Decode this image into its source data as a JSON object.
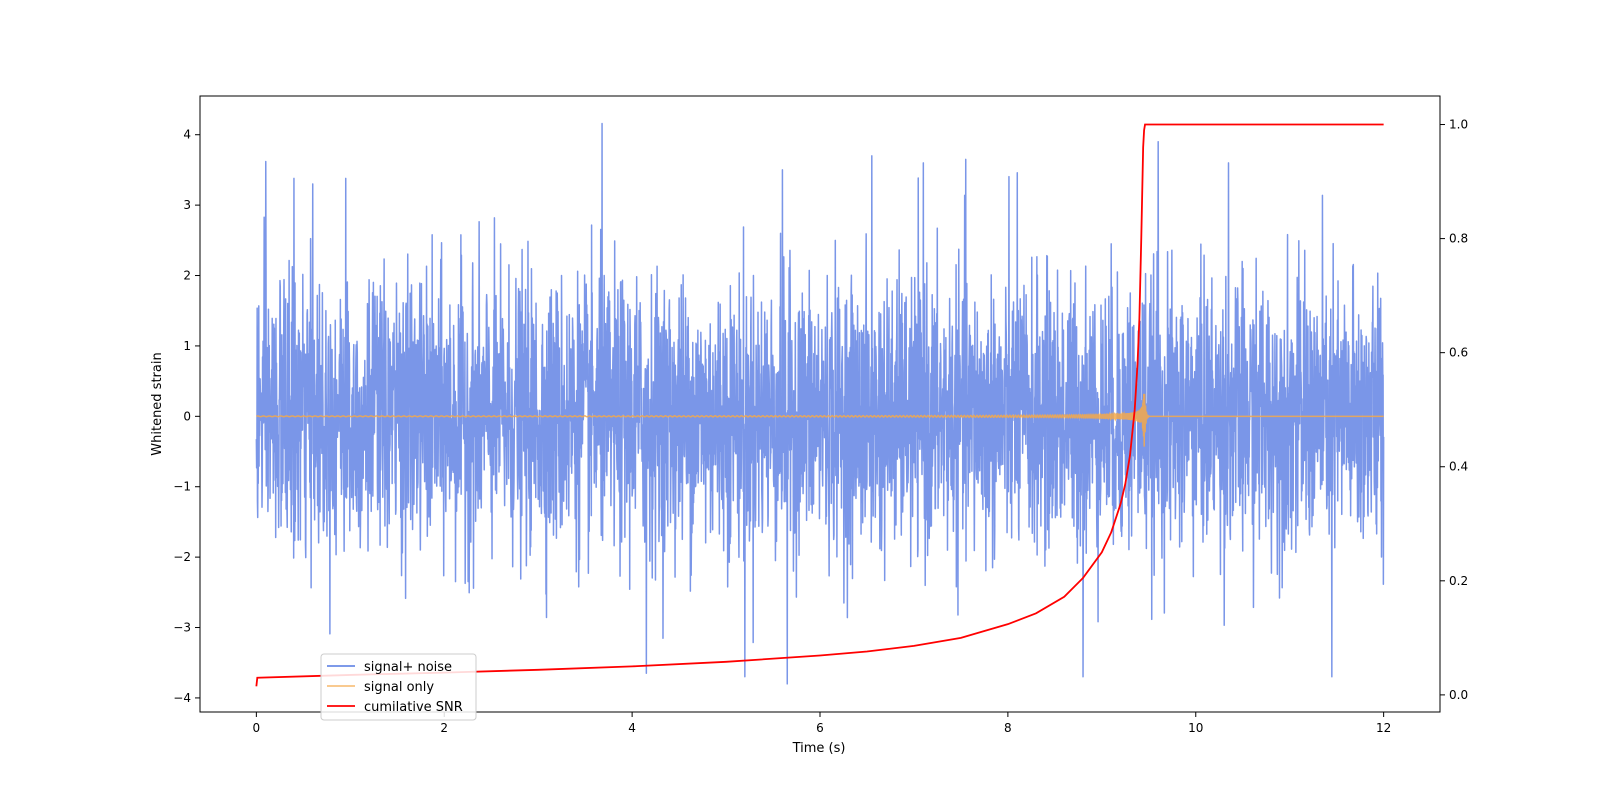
{
  "chart_data": {
    "type": "line",
    "title": "",
    "xlabel": "Time (s)",
    "ylabel": "Whitened strain",
    "y2label": "",
    "xlim": [
      -0.6,
      12.6
    ],
    "ylim": [
      -4.2,
      4.55
    ],
    "y2lim": [
      -0.03,
      1.05
    ],
    "xticks": [
      0,
      2,
      4,
      6,
      8,
      10,
      12
    ],
    "xtick_labels": [
      "0",
      "2",
      "4",
      "6",
      "8",
      "10",
      "12"
    ],
    "yticks": [
      -4,
      -3,
      -2,
      -1,
      0,
      1,
      2,
      3,
      4
    ],
    "ytick_labels": [
      "−4",
      "−3",
      "−2",
      "−1",
      "0",
      "1",
      "2",
      "3",
      "4"
    ],
    "y2ticks": [
      0.0,
      0.2,
      0.4,
      0.6,
      0.8,
      1.0
    ],
    "y2tick_labels": [
      "0.0",
      "0.2",
      "0.4",
      "0.6",
      "0.8",
      "1.0"
    ],
    "grid": false,
    "legend_position": "lower-left",
    "series": [
      {
        "name": "signal+ noise",
        "axis": "left",
        "color": "#6b8be6",
        "style": "dense noise, approx. unit variance, peaks near ±3.5",
        "x_range": [
          0,
          12
        ],
        "peaks": [
          {
            "x": 0.1,
            "y": 3.62
          },
          {
            "x": 0.4,
            "y": 3.38
          },
          {
            "x": 0.6,
            "y": 3.3
          },
          {
            "x": 0.95,
            "y": 3.38
          },
          {
            "x": 3.68,
            "y": 4.16
          },
          {
            "x": 5.6,
            "y": 3.5
          },
          {
            "x": 6.55,
            "y": 3.7
          },
          {
            "x": 7.1,
            "y": 3.6
          },
          {
            "x": 7.55,
            "y": 3.65
          },
          {
            "x": 8.1,
            "y": 3.46
          },
          {
            "x": 9.6,
            "y": 3.9
          },
          {
            "x": 10.35,
            "y": 3.6
          },
          {
            "x": 5.65,
            "y": -3.8
          },
          {
            "x": 8.8,
            "y": -3.7
          },
          {
            "x": 11.45,
            "y": -3.7
          },
          {
            "x": 4.15,
            "y": -3.65
          },
          {
            "x": 5.2,
            "y": -3.7
          }
        ]
      },
      {
        "name": "signal only",
        "axis": "left",
        "color": "#f5a94a",
        "style": "chirp near zero, amplitude growing until merger",
        "x_range": [
          0,
          12
        ],
        "merger_time": 9.45,
        "max_amplitude": 0.65
      },
      {
        "name": "cumilative SNR",
        "axis": "right",
        "color": "#ff0000",
        "x": [
          0,
          0.01,
          1,
          2,
          3,
          4,
          5,
          6,
          6.5,
          7,
          7.5,
          8,
          8.3,
          8.6,
          8.8,
          9.0,
          9.1,
          9.2,
          9.25,
          9.3,
          9.35,
          9.38,
          9.4,
          9.42,
          9.44,
          9.45,
          9.46,
          9.5,
          12
        ],
        "y": [
          0.015,
          0.03,
          0.035,
          0.039,
          0.044,
          0.05,
          0.058,
          0.069,
          0.076,
          0.086,
          0.1,
          0.124,
          0.143,
          0.172,
          0.205,
          0.25,
          0.285,
          0.335,
          0.37,
          0.42,
          0.5,
          0.58,
          0.66,
          0.8,
          0.96,
          0.99,
          1.0,
          1.0,
          1.0
        ]
      }
    ]
  }
}
